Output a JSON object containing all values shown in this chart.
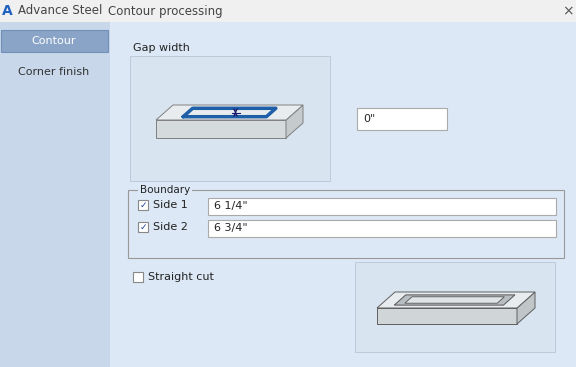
{
  "title_icon": "A",
  "title_app": "Advance Steel",
  "title_dialog": "Contour processing",
  "close_btn": "×",
  "tab1": "Contour",
  "tab2": "Corner finish",
  "gap_width_label": "Gap width",
  "gap_value": "0\"",
  "boundary_label": "Boundary",
  "side1_label": "Side 1",
  "side1_value": "6 1/4\"",
  "side2_label": "Side 2",
  "side2_value": "6 3/4\"",
  "straight_cut_label": "Straight cut",
  "titlebar_bg": "#f0f0f0",
  "titlebar_fg": "#444444",
  "window_bg": "#dce8f5",
  "sidebar_bg": "#c8d8ea",
  "tab_selected_bg": "#8aa4c8",
  "tab_selected_fg": "#ffffff",
  "tab_unsel_fg": "#333333",
  "content_bg": "#dce8f5",
  "groupbox_bg": "#dce8f5",
  "input_bg": "#ffffff",
  "input_border": "#aaaaaa",
  "plate_top_light": "#e8ecee",
  "plate_top_mid": "#d8dde0",
  "plate_side_right": "#b8bec2",
  "plate_side_front": "#c8cdd0",
  "plate_edge": "#808080",
  "blue_outline": "#1e5fa8",
  "arrow_color": "#1a237e",
  "plate2_top": "#e8eaeb",
  "plate2_side": "#c0c5c8",
  "plate2_edge": "#606060",
  "slot_dark": "#c0c8cc",
  "slot_light": "#f0f2f3",
  "fs_title": 8.5,
  "fs_body": 8.0,
  "fs_small": 7.5
}
